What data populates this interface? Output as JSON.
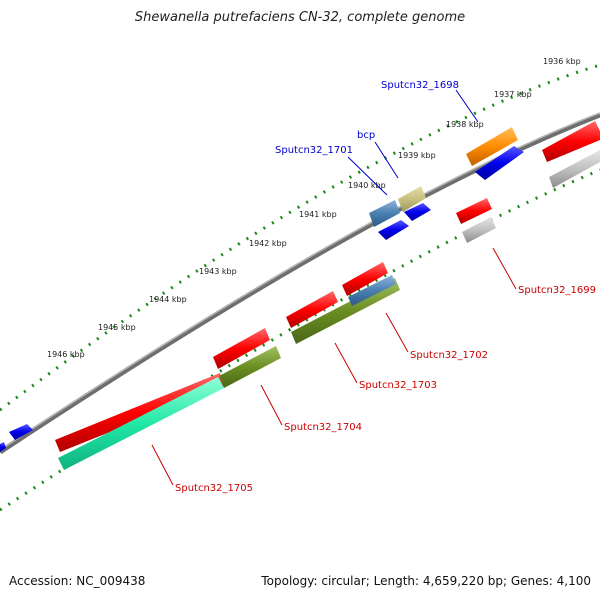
{
  "title": "Shewanella putrefaciens CN-32, complete genome",
  "footer": {
    "accession": "Accession: NC_009438",
    "summary": "Topology: circular; Length: 4,659,220 bp; Genes: 4,100"
  },
  "colors": {
    "backbone": "#7a7a7a",
    "tick_dots": "#1a8a1a",
    "label_forward": "#0000cc",
    "label_reverse": "#cc0000"
  },
  "ticks": [
    "1936 kbp",
    "1937 kbp",
    "1938 kbp",
    "1939 kbp",
    "1940 kbp",
    "1941 kbp",
    "1942 kbp",
    "1943 kbp",
    "1944 kbp",
    "1945 kbp",
    "1946 kbp"
  ],
  "gene_labels": [
    {
      "name": "Sputcn32_1698",
      "strand": "forward"
    },
    {
      "name": "bcp",
      "strand": "forward"
    },
    {
      "name": "Sputcn32_1701",
      "strand": "forward"
    },
    {
      "name": "Sputcn32_1699",
      "strand": "reverse"
    },
    {
      "name": "Sputcn32_1702",
      "strand": "reverse"
    },
    {
      "name": "Sputcn32_1703",
      "strand": "reverse"
    },
    {
      "name": "Sputcn32_1704",
      "strand": "reverse"
    },
    {
      "name": "Sputcn32_1705",
      "strand": "reverse"
    }
  ]
}
